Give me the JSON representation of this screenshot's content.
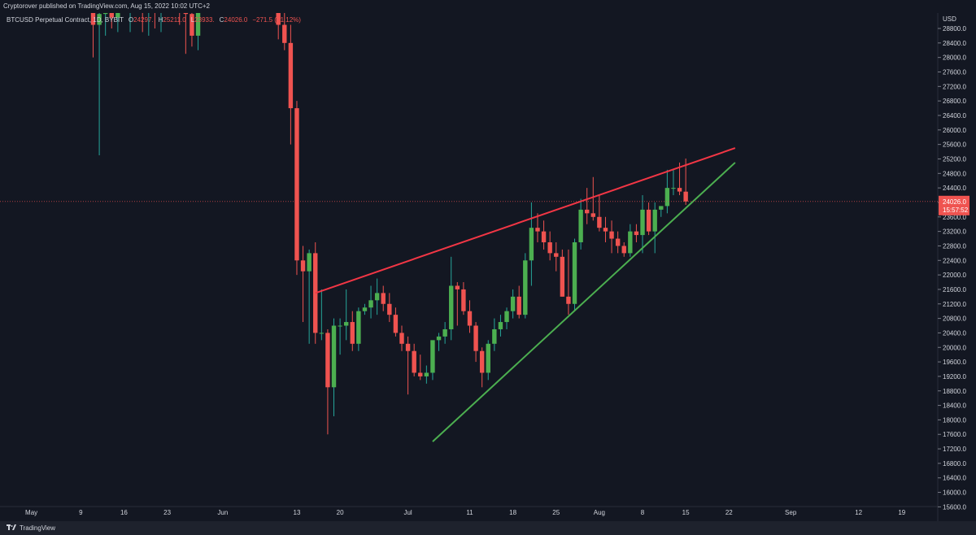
{
  "header": {
    "published": "Cryptorover published on TradingView.com, Aug 15, 2022 10:02 UTC+2"
  },
  "legend": {
    "symbol": "BTCUSD Perpetual Contract, 1D, BYBIT",
    "open_label": "O",
    "open": "24297.",
    "high_label": "H",
    "high": "25211.0",
    "low_label": "L",
    "low": "23933.",
    "close_label": "C",
    "close": "24026.0",
    "change": "−271.5 (−1.12%)"
  },
  "price_axis": {
    "currency": "USD",
    "ticks": [
      "28800.0",
      "28400.0",
      "28000.0",
      "27600.0",
      "27200.0",
      "26800.0",
      "26400.0",
      "26000.0",
      "25600.0",
      "25200.0",
      "24800.0",
      "24400.0",
      "24000.0",
      "23600.0",
      "23200.0",
      "22800.0",
      "22400.0",
      "22000.0",
      "21600.0",
      "21200.0",
      "20800.0",
      "20400.0",
      "20000.0",
      "19600.0",
      "19200.0",
      "18800.0",
      "18400.0",
      "18000.0",
      "17600.0",
      "17200.0",
      "16800.0",
      "16400.0",
      "16000.0",
      "15600.0"
    ],
    "current_price": "24026.0",
    "countdown": "15:57:52"
  },
  "time_axis": {
    "labels": [
      {
        "text": "May",
        "day": 0
      },
      {
        "text": "9",
        "day": 8
      },
      {
        "text": "16",
        "day": 15
      },
      {
        "text": "23",
        "day": 22
      },
      {
        "text": "Jun",
        "day": 31
      },
      {
        "text": "13",
        "day": 43
      },
      {
        "text": "20",
        "day": 50
      },
      {
        "text": "Jul",
        "day": 61
      },
      {
        "text": "11",
        "day": 71
      },
      {
        "text": "18",
        "day": 78
      },
      {
        "text": "25",
        "day": 85
      },
      {
        "text": "Aug",
        "day": 92
      },
      {
        "text": "8",
        "day": 99
      },
      {
        "text": "15",
        "day": 106
      },
      {
        "text": "22",
        "day": 113
      },
      {
        "text": "Sep",
        "day": 123
      },
      {
        "text": "12",
        "day": 134
      },
      {
        "text": "19",
        "day": 141
      }
    ]
  },
  "footer": {
    "brand": "TradingView"
  },
  "colors": {
    "background": "#131722",
    "up": "#26a69a",
    "up_body": "#4caf50",
    "down": "#ef5350",
    "resistance": "#f23645",
    "support": "#4caf50",
    "text": "#d1d4dc"
  },
  "chart_data": {
    "type": "candlestick",
    "x_unit": "days since May 1, 2022",
    "ylim": [
      15600,
      29000
    ],
    "candles": [
      {
        "day": 10,
        "o": 30100,
        "h": 30300,
        "l": 28000,
        "c": 28900
      },
      {
        "day": 11,
        "o": 28900,
        "h": 29300,
        "l": 25300,
        "c": 29200
      },
      {
        "day": 12,
        "o": 29200,
        "h": 30100,
        "l": 28600,
        "c": 29600
      },
      {
        "day": 13,
        "o": 29600,
        "h": 30600,
        "l": 28800,
        "c": 29100
      },
      {
        "day": 14,
        "o": 29100,
        "h": 30500,
        "l": 28700,
        "c": 30100
      },
      {
        "day": 15,
        "o": 30100,
        "h": 30600,
        "l": 29300,
        "c": 29500
      },
      {
        "day": 16,
        "o": 29500,
        "h": 30500,
        "l": 28700,
        "c": 30300
      },
      {
        "day": 17,
        "o": 30300,
        "h": 31000,
        "l": 29300,
        "c": 29900
      },
      {
        "day": 18,
        "o": 29900,
        "h": 30700,
        "l": 28700,
        "c": 29300
      },
      {
        "day": 19,
        "o": 29300,
        "h": 30400,
        "l": 28600,
        "c": 30000
      },
      {
        "day": 20,
        "o": 30000,
        "h": 30800,
        "l": 28800,
        "c": 29400
      },
      {
        "day": 21,
        "o": 29400,
        "h": 30500,
        "l": 28700,
        "c": 30200
      },
      {
        "day": 22,
        "o": 30200,
        "h": 31000,
        "l": 29600,
        "c": 30400
      },
      {
        "day": 23,
        "o": 30400,
        "h": 30800,
        "l": 29300,
        "c": 29600
      },
      {
        "day": 24,
        "o": 29600,
        "h": 30300,
        "l": 28900,
        "c": 29300
      },
      {
        "day": 25,
        "o": 29300,
        "h": 30100,
        "l": 28100,
        "c": 29200
      },
      {
        "day": 26,
        "o": 29200,
        "h": 30200,
        "l": 28300,
        "c": 28600
      },
      {
        "day": 27,
        "o": 28600,
        "h": 29900,
        "l": 28200,
        "c": 29500
      },
      {
        "day": 40,
        "o": 31000,
        "h": 31400,
        "l": 28500,
        "c": 28900
      },
      {
        "day": 41,
        "o": 28900,
        "h": 29500,
        "l": 28200,
        "c": 28400
      },
      {
        "day": 42,
        "o": 28400,
        "h": 28900,
        "l": 25600,
        "c": 26600
      },
      {
        "day": 43,
        "o": 26600,
        "h": 26800,
        "l": 22000,
        "c": 22400
      },
      {
        "day": 44,
        "o": 22400,
        "h": 22800,
        "l": 20700,
        "c": 22100
      },
      {
        "day": 45,
        "o": 22100,
        "h": 22700,
        "l": 20100,
        "c": 22600
      },
      {
        "day": 46,
        "o": 22600,
        "h": 22900,
        "l": 20100,
        "c": 20400
      },
      {
        "day": 47,
        "o": 20400,
        "h": 21600,
        "l": 20200,
        "c": 20400
      },
      {
        "day": 48,
        "o": 20400,
        "h": 20500,
        "l": 17600,
        "c": 18900
      },
      {
        "day": 49,
        "o": 18900,
        "h": 20800,
        "l": 18100,
        "c": 20600
      },
      {
        "day": 50,
        "o": 20600,
        "h": 20800,
        "l": 19800,
        "c": 20600
      },
      {
        "day": 51,
        "o": 20600,
        "h": 21600,
        "l": 20200,
        "c": 20700
      },
      {
        "day": 52,
        "o": 20700,
        "h": 21000,
        "l": 19900,
        "c": 20100
      },
      {
        "day": 53,
        "o": 20100,
        "h": 21100,
        "l": 19900,
        "c": 21000
      },
      {
        "day": 54,
        "o": 21000,
        "h": 21200,
        "l": 20900,
        "c": 21100
      },
      {
        "day": 55,
        "o": 21100,
        "h": 21700,
        "l": 20800,
        "c": 21300
      },
      {
        "day": 56,
        "o": 21300,
        "h": 21900,
        "l": 20900,
        "c": 21500
      },
      {
        "day": 57,
        "o": 21500,
        "h": 21700,
        "l": 21000,
        "c": 21200
      },
      {
        "day": 58,
        "o": 21200,
        "h": 21500,
        "l": 20700,
        "c": 20900
      },
      {
        "day": 59,
        "o": 20900,
        "h": 21100,
        "l": 20300,
        "c": 20400
      },
      {
        "day": 60,
        "o": 20400,
        "h": 20600,
        "l": 19900,
        "c": 20100
      },
      {
        "day": 61,
        "o": 20100,
        "h": 20300,
        "l": 18700,
        "c": 19900
      },
      {
        "day": 62,
        "o": 19900,
        "h": 20100,
        "l": 19200,
        "c": 19300
      },
      {
        "day": 63,
        "o": 19300,
        "h": 19800,
        "l": 19100,
        "c": 19200
      },
      {
        "day": 64,
        "o": 19200,
        "h": 19500,
        "l": 19000,
        "c": 19300
      },
      {
        "day": 65,
        "o": 19300,
        "h": 20100,
        "l": 19100,
        "c": 20200
      },
      {
        "day": 66,
        "o": 20200,
        "h": 20400,
        "l": 19900,
        "c": 20300
      },
      {
        "day": 67,
        "o": 20300,
        "h": 20700,
        "l": 20100,
        "c": 20500
      },
      {
        "day": 68,
        "o": 20500,
        "h": 22500,
        "l": 20200,
        "c": 21700
      },
      {
        "day": 69,
        "o": 21700,
        "h": 21800,
        "l": 20600,
        "c": 21600
      },
      {
        "day": 70,
        "o": 21600,
        "h": 21800,
        "l": 20900,
        "c": 21000
      },
      {
        "day": 71,
        "o": 21000,
        "h": 21300,
        "l": 20400,
        "c": 20600
      },
      {
        "day": 72,
        "o": 20600,
        "h": 20700,
        "l": 19600,
        "c": 19900
      },
      {
        "day": 73,
        "o": 19900,
        "h": 20000,
        "l": 18900,
        "c": 19300
      },
      {
        "day": 74,
        "o": 19300,
        "h": 20200,
        "l": 19100,
        "c": 20100
      },
      {
        "day": 75,
        "o": 20100,
        "h": 20800,
        "l": 19900,
        "c": 20500
      },
      {
        "day": 76,
        "o": 20500,
        "h": 20900,
        "l": 20300,
        "c": 20700
      },
      {
        "day": 77,
        "o": 20700,
        "h": 21100,
        "l": 20500,
        "c": 21000
      },
      {
        "day": 78,
        "o": 21000,
        "h": 21600,
        "l": 20800,
        "c": 21400
      },
      {
        "day": 79,
        "o": 21400,
        "h": 21700,
        "l": 20800,
        "c": 20900
      },
      {
        "day": 80,
        "o": 20900,
        "h": 22600,
        "l": 20800,
        "c": 22400
      },
      {
        "day": 81,
        "o": 22400,
        "h": 24000,
        "l": 21700,
        "c": 23300
      },
      {
        "day": 82,
        "o": 23300,
        "h": 23700,
        "l": 22900,
        "c": 23200
      },
      {
        "day": 83,
        "o": 23200,
        "h": 23500,
        "l": 22700,
        "c": 22900
      },
      {
        "day": 84,
        "o": 22900,
        "h": 23200,
        "l": 22400,
        "c": 22600
      },
      {
        "day": 85,
        "o": 22600,
        "h": 22900,
        "l": 22100,
        "c": 22500
      },
      {
        "day": 86,
        "o": 22500,
        "h": 22700,
        "l": 21400,
        "c": 21400
      },
      {
        "day": 87,
        "o": 21400,
        "h": 22700,
        "l": 20900,
        "c": 21200
      },
      {
        "day": 88,
        "o": 21200,
        "h": 23000,
        "l": 21000,
        "c": 22900
      },
      {
        "day": 89,
        "o": 22900,
        "h": 24100,
        "l": 22700,
        "c": 23800
      },
      {
        "day": 90,
        "o": 23800,
        "h": 24400,
        "l": 23400,
        "c": 23700
      },
      {
        "day": 91,
        "o": 23700,
        "h": 24700,
        "l": 23500,
        "c": 23600
      },
      {
        "day": 92,
        "o": 23600,
        "h": 24200,
        "l": 23200,
        "c": 23300
      },
      {
        "day": 93,
        "o": 23300,
        "h": 23600,
        "l": 22900,
        "c": 23200
      },
      {
        "day": 94,
        "o": 23200,
        "h": 23500,
        "l": 22600,
        "c": 23000
      },
      {
        "day": 95,
        "o": 23000,
        "h": 23200,
        "l": 22600,
        "c": 22800
      },
      {
        "day": 96,
        "o": 22800,
        "h": 22900,
        "l": 22500,
        "c": 22600
      },
      {
        "day": 97,
        "o": 22600,
        "h": 23400,
        "l": 22500,
        "c": 23200
      },
      {
        "day": 98,
        "o": 23200,
        "h": 23400,
        "l": 22900,
        "c": 23100
      },
      {
        "day": 99,
        "o": 23100,
        "h": 24200,
        "l": 22600,
        "c": 23800
      },
      {
        "day": 100,
        "o": 23800,
        "h": 24000,
        "l": 23100,
        "c": 23200
      },
      {
        "day": 101,
        "o": 23200,
        "h": 24000,
        "l": 22600,
        "c": 23800
      },
      {
        "day": 102,
        "o": 23800,
        "h": 23900,
        "l": 23600,
        "c": 23900
      },
      {
        "day": 103,
        "o": 23900,
        "h": 24900,
        "l": 23700,
        "c": 24400
      },
      {
        "day": 104,
        "o": 24400,
        "h": 24900,
        "l": 24200,
        "c": 24400
      },
      {
        "day": 105,
        "o": 24400,
        "h": 25100,
        "l": 24200,
        "c": 24300
      },
      {
        "day": 106,
        "o": 24297,
        "h": 25211,
        "l": 23933,
        "c": 24026
      }
    ],
    "trendlines": [
      {
        "name": "resistance",
        "color": "#f23645",
        "from": {
          "day": 46,
          "price": 21500
        },
        "to": {
          "day": 114,
          "price": 25500
        }
      },
      {
        "name": "support",
        "color": "#4caf50",
        "from": {
          "day": 65,
          "price": 17400
        },
        "to": {
          "day": 114,
          "price": 25100
        }
      }
    ]
  }
}
